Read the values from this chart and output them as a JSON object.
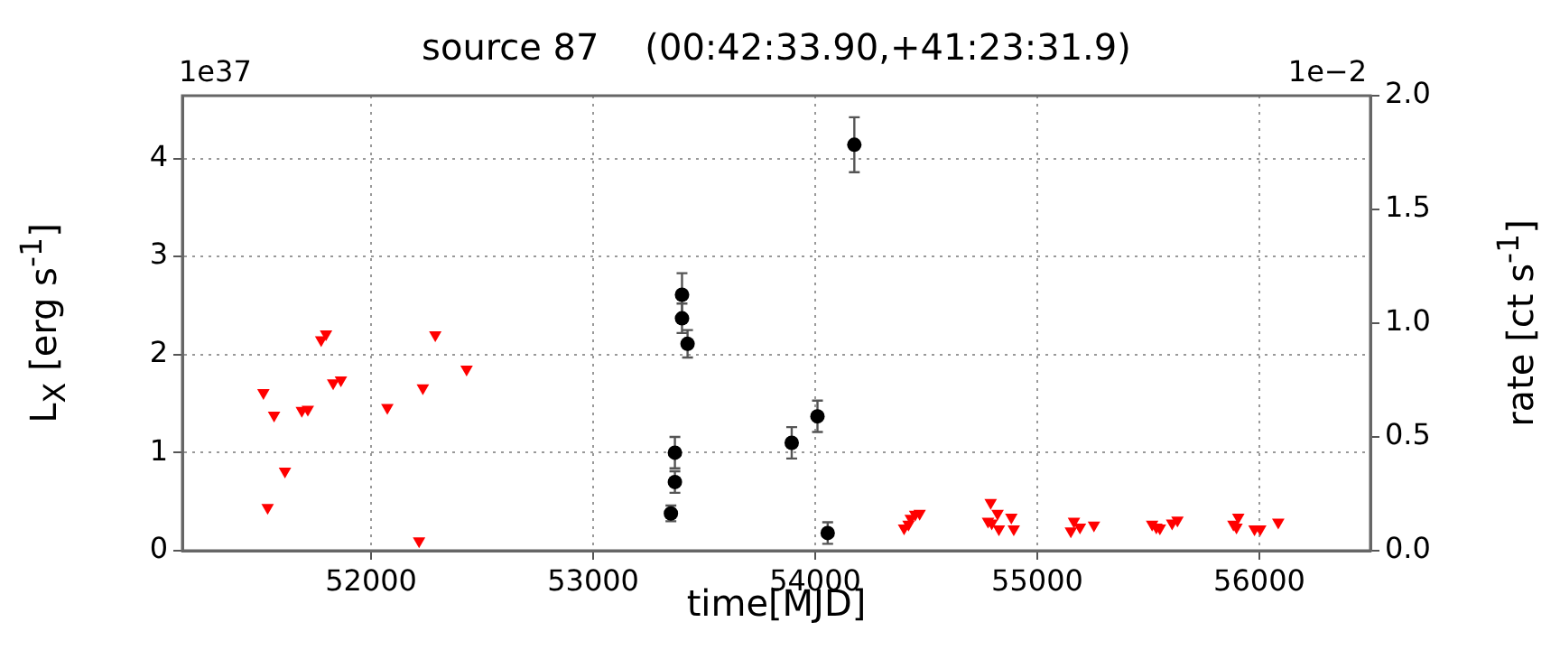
{
  "chart_data": {
    "type": "scatter",
    "title": "source 87    (00:42:33.90,+41:23:31.9)",
    "xlabel": "time[MJD]",
    "ylabel": "L$_{X}$ [erg s$^{-1}$]",
    "y2label": "rate [ct s$^{-1}$]",
    "annotations": [
      "1e37",
      "1e−2"
    ],
    "xlim": [
      51150,
      56500
    ],
    "xticks": [
      52000,
      53000,
      54000,
      55000,
      56000
    ],
    "ylim": [
      0,
      4.64
    ],
    "yticks": [
      0,
      1,
      2,
      3,
      4
    ],
    "y2lim": [
      0,
      2.0
    ],
    "y2ticks": [
      {
        "value": 0,
        "label": "0.0"
      },
      {
        "value": 0.5,
        "label": "0.5"
      },
      {
        "value": 1,
        "label": "1.0"
      },
      {
        "value": 1.5,
        "label": "1.5"
      },
      {
        "value": 2,
        "label": "2.0"
      }
    ],
    "grid": true,
    "legend": false,
    "series": [
      {
        "color": "#000000",
        "marker": "circle",
        "x": [
          53350,
          53368,
          53368,
          53400,
          53400,
          53425,
          53894,
          54010,
          54056,
          54176
        ],
        "values": [
          0.38,
          0.7,
          1.0,
          2.61,
          2.37,
          2.11,
          1.1,
          1.37,
          0.18,
          4.14
        ],
        "errors": [
          0.08,
          0.11,
          0.16,
          0.22,
          0.15,
          0.14,
          0.16,
          0.16,
          0.11,
          0.28
        ]
      },
      {
        "color": "#ff0000",
        "marker": "triangle",
        "x": [
          51515,
          51534,
          51563,
          51612,
          51688,
          51715,
          51775,
          51797,
          51829,
          51864,
          52073,
          52216,
          52233,
          52289,
          52430,
          54400,
          54420,
          54430,
          54450,
          54470,
          54778,
          54790,
          54795,
          54821,
          54827,
          54883,
          54894,
          55151,
          55165,
          55192,
          55255,
          55517,
          55536,
          55552,
          55607,
          55631,
          55883,
          55897,
          55905,
          55978,
          56004,
          56085
        ],
        "values": [
          1.61,
          0.44,
          1.38,
          0.81,
          1.43,
          1.44,
          2.15,
          2.21,
          1.71,
          1.74,
          1.46,
          0.1,
          1.66,
          2.2,
          1.85,
          0.23,
          0.27,
          0.33,
          0.37,
          0.38,
          0.3,
          0.49,
          0.28,
          0.38,
          0.22,
          0.34,
          0.22,
          0.2,
          0.3,
          0.24,
          0.26,
          0.27,
          0.24,
          0.23,
          0.28,
          0.31,
          0.27,
          0.24,
          0.34,
          0.22,
          0.22,
          0.29
        ]
      }
    ]
  }
}
